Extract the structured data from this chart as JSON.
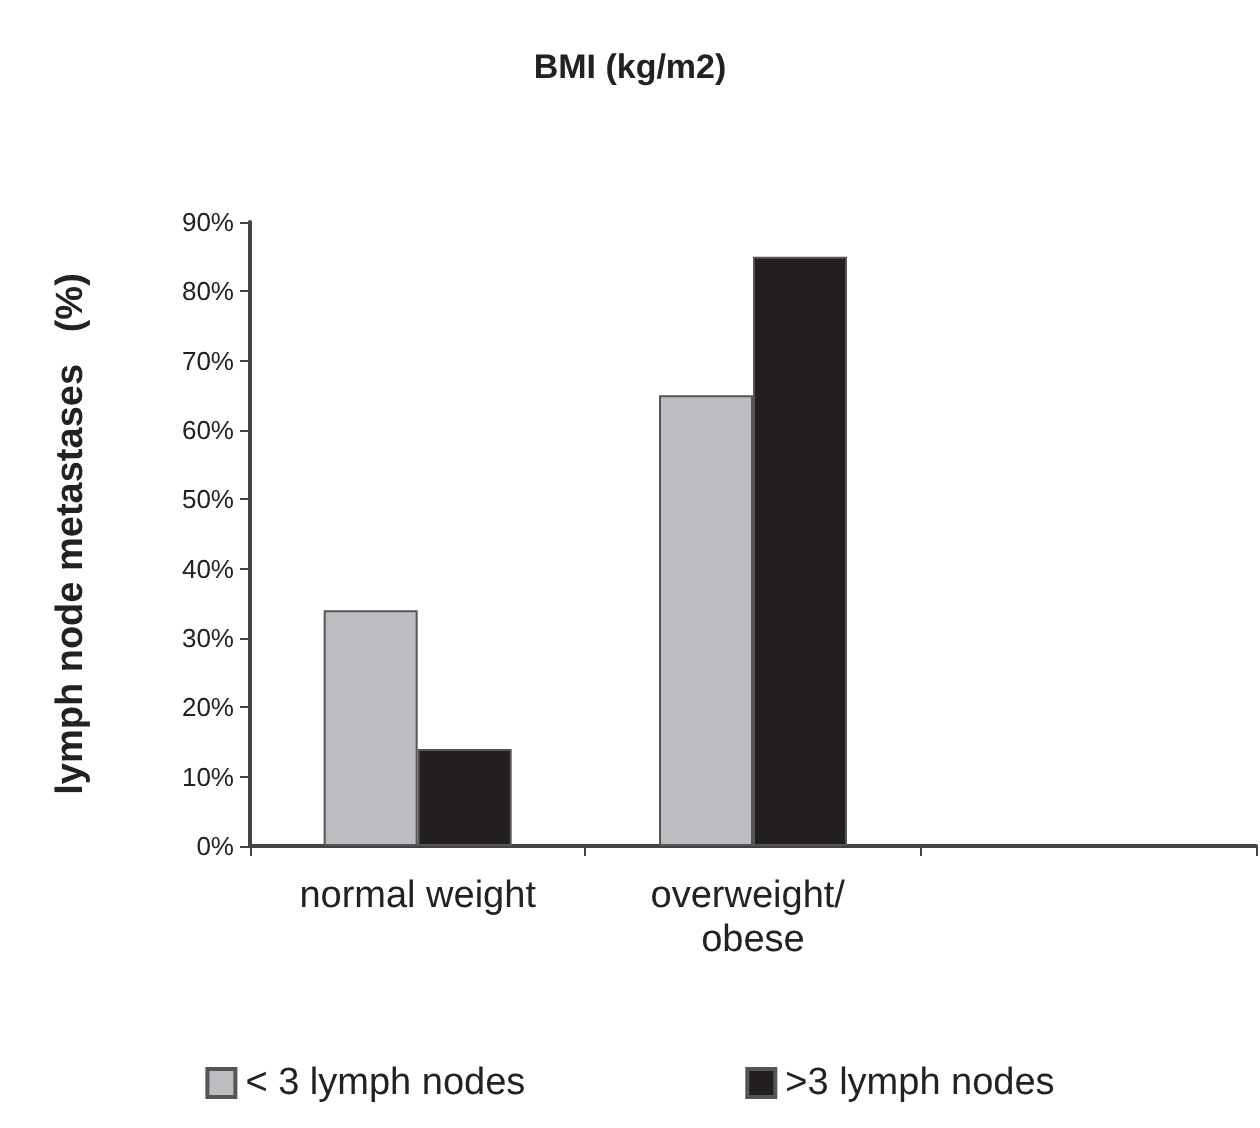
{
  "chart_data": {
    "type": "bar",
    "title": "BMI (kg/m2)",
    "ylabel": "lymph node metastases   (%)",
    "categories": [
      "normal weight",
      "overweight/ obese",
      null
    ],
    "series": [
      {
        "name": "< 3 lymph nodes",
        "color": "#bcbdc0",
        "values": [
          34,
          65,
          null
        ]
      },
      {
        "name": ">3 lymph nodes",
        "color": "#231f20",
        "values": [
          14,
          85,
          null
        ]
      }
    ],
    "ylim": [
      0,
      90
    ],
    "yticks": [
      {
        "value": 0,
        "label": "0%"
      },
      {
        "value": 10,
        "label": "10%"
      },
      {
        "value": 20,
        "label": "20%"
      },
      {
        "value": 30,
        "label": "30%"
      },
      {
        "value": 40,
        "label": "40%"
      },
      {
        "value": 50,
        "label": "50%"
      },
      {
        "value": 60,
        "label": "60%"
      },
      {
        "value": 70,
        "label": "70%"
      },
      {
        "value": 80,
        "label": "80%"
      },
      {
        "value": 90,
        "label": "90%"
      }
    ],
    "grid": false,
    "legend": "bottom"
  }
}
